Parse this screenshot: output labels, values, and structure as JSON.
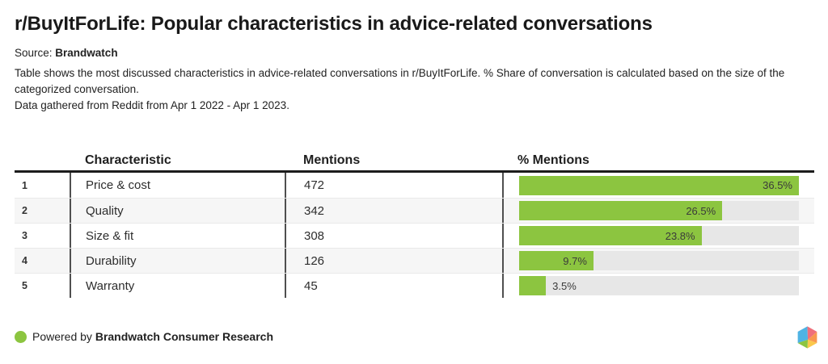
{
  "header": {
    "title": "r/BuyItForLife: Popular characteristics in advice-related conversations",
    "source_label": "Source:",
    "source_value": "Brandwatch",
    "description": "Table shows the most discussed characteristics in advice-related conversations in r/BuyItForLife. % Share of conversation is calculated based on the size of the categorized conversation.",
    "date_note": "Data gathered from Reddit from Apr 1 2022 - Apr 1 2023."
  },
  "table": {
    "columns": {
      "characteristic": "Characteristic",
      "mentions": "Mentions",
      "pct_mentions": "% Mentions"
    },
    "rows": [
      {
        "rank": "1",
        "characteristic": "Price & cost",
        "mentions": "472",
        "pct_label": "36.5%"
      },
      {
        "rank": "2",
        "characteristic": "Quality",
        "mentions": "342",
        "pct_label": "26.5%"
      },
      {
        "rank": "3",
        "characteristic": "Size & fit",
        "mentions": "308",
        "pct_label": "23.8%"
      },
      {
        "rank": "4",
        "characteristic": "Durability",
        "mentions": "126",
        "pct_label": "9.7%"
      },
      {
        "rank": "5",
        "characteristic": "Warranty",
        "mentions": "45",
        "pct_label": "3.5%"
      }
    ]
  },
  "chart_data": {
    "type": "bar",
    "orientation": "horizontal",
    "title": "% Mentions",
    "categories": [
      "Price & cost",
      "Quality",
      "Size & fit",
      "Durability",
      "Warranty"
    ],
    "values": [
      36.5,
      26.5,
      23.8,
      9.7,
      3.5
    ],
    "value_labels": [
      "36.5%",
      "26.5%",
      "23.8%",
      "9.7%",
      "3.5%"
    ],
    "mentions_values": [
      472,
      342,
      308,
      126,
      45
    ],
    "xlim": [
      0,
      36.5
    ],
    "grid": false,
    "legend": false,
    "bar_color": "#8cc540",
    "track_color": "#e7e7e7"
  },
  "footer": {
    "powered_by": "Powered by",
    "brand": "Brandwatch Consumer Research",
    "dot_color": "#8cc540"
  },
  "colors": {
    "accent_green": "#8cc540",
    "bar_track_gray": "#e7e7e7",
    "alt_row_gray": "#f6f6f6",
    "header_rule_black": "#1c1c1c",
    "divider_gray": "#4f4f4f",
    "logo_blue": "#4fb3e4",
    "logo_pink": "#ef6f7b",
    "logo_orange": "#f8974f",
    "logo_yellow": "#fbc84b",
    "logo_green": "#8cc540"
  }
}
